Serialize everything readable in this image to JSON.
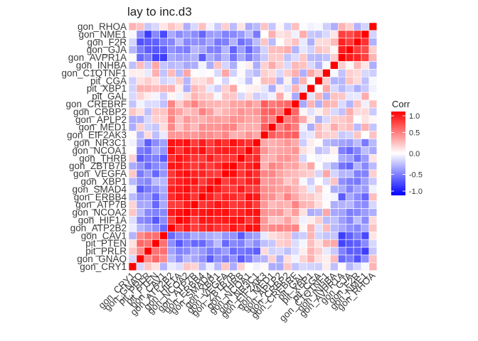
{
  "chart_data": {
    "type": "heatmap",
    "title": "lay to inc.d3",
    "variables_top_to_bottom": [
      "gon_RHOA",
      "gon_NME1",
      "gon_F2R",
      "gon_GJA",
      "gon_AVPR1A",
      "gon_INHBA",
      "gon_C1QTNF1",
      "pit_CGA",
      "pit_XBP1",
      "pit_GAL",
      "gon_CREBRF",
      "gon_CRBP2",
      "gon_APLP2",
      "gon_MED1",
      "gon_EIF2AK3",
      "gon_NR3C1",
      "gon_NCOA1",
      "gon_THRB",
      "gon_ZBTB7B",
      "gon_VEGFA",
      "gon_XBP1",
      "gon_SMAD4",
      "gon_ERBB4",
      "gon_ATP7B",
      "gon_NCOA2",
      "gon_HIF1A",
      "gon_ATP2B2",
      "gon_CAV1",
      "pit_PTEN",
      "pit_PRLR",
      "gon_GNAQ",
      "gon_CRY1"
    ],
    "x_order_left_to_right": "reverse of variables_top_to_bottom (gon_CRY1 ... gon_RHOA)",
    "groups": [
      {
        "members": [
          "gon_NR3C1",
          "gon_NCOA1",
          "gon_THRB",
          "gon_ZBTB7B",
          "gon_VEGFA",
          "gon_XBP1",
          "gon_SMAD4",
          "gon_ERBB4",
          "gon_ATP7B",
          "gon_NCOA2",
          "gon_HIF1A",
          "gon_ATP2B2"
        ],
        "within_corr": 0.85
      },
      {
        "members": [
          "gon_CREBRF",
          "gon_CRBP2",
          "gon_APLP2",
          "gon_MED1",
          "gon_EIF2AK3"
        ],
        "within_corr": 0.55
      },
      {
        "members": [
          "gon_NME1",
          "gon_F2R",
          "gon_GJA",
          "gon_AVPR1A"
        ],
        "within_corr": 0.8
      },
      {
        "members": [
          "gon_CAV1",
          "pit_PTEN",
          "pit_PRLR",
          "gon_GNAQ"
        ],
        "within_corr": 0.5
      }
    ],
    "diagonal_value": 1.0,
    "legend": {
      "title": "Corr",
      "ticks": [
        "1.0",
        "0.5",
        "0.0",
        "-0.5",
        "-1.0"
      ],
      "tick_values": [
        1.0,
        0.5,
        0.0,
        -0.5,
        -1.0
      ],
      "placement": "right"
    },
    "colors": {
      "high": "#ff0000",
      "mid": "#ffffff",
      "low": "#0000ff",
      "grid": "#ffffff"
    },
    "range": [
      -1,
      1
    ]
  }
}
